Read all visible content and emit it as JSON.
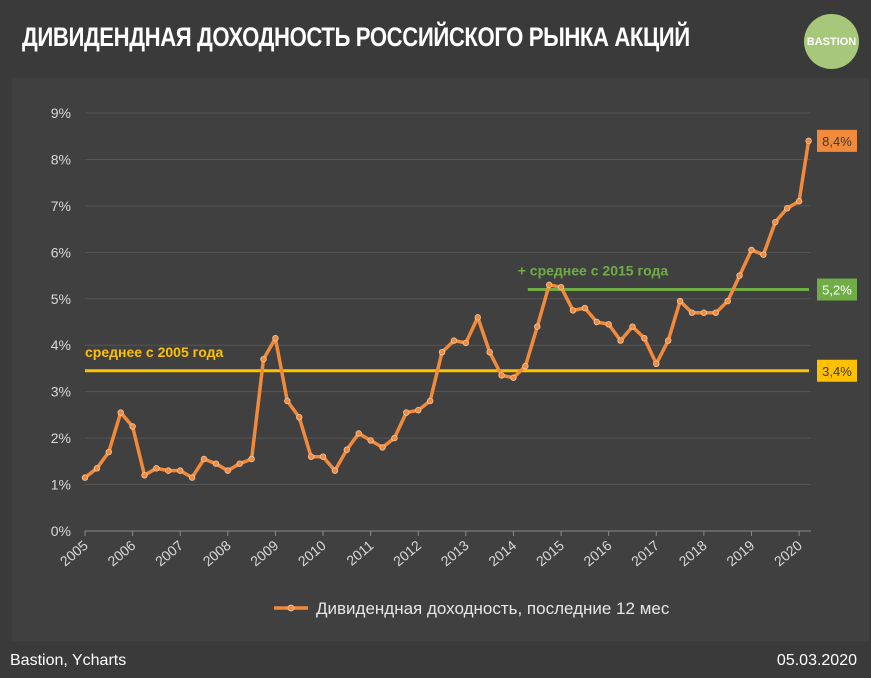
{
  "header": {
    "title": "ДИВИДЕНДНАЯ ДОХОДНОСТЬ РОССИЙСКОГО РЫНКА АКЦИЙ",
    "logo_text": "BASTION"
  },
  "footer": {
    "source": "Bastion, Ycharts",
    "date": "05.03.2020"
  },
  "colors": {
    "background": "#3a3a3a",
    "panel": "#404040",
    "series": "#f28a3c",
    "avg_2005": "#ffc000",
    "avg_2015": "#70ad47",
    "logo": "#a7c77b"
  },
  "chart_data": {
    "type": "line",
    "title": "",
    "xlabel": "",
    "ylabel": "",
    "ylim": [
      0,
      9
    ],
    "y_ticks": [
      "0%",
      "1%",
      "2%",
      "3%",
      "4%",
      "5%",
      "6%",
      "7%",
      "8%",
      "9%"
    ],
    "x_ticks": [
      "2005",
      "2006",
      "2007",
      "2008",
      "2009",
      "2010",
      "2011",
      "2012",
      "2013",
      "2014",
      "2015",
      "2016",
      "2017",
      "2018",
      "2019",
      "2020"
    ],
    "xlim": [
      2005,
      2020.25
    ],
    "grid": true,
    "legend_position": "bottom",
    "series": [
      {
        "name": "Дивидендная доходность, последние 12 мес",
        "color": "#f28a3c",
        "x": [
          2005.0,
          2005.25,
          2005.5,
          2005.75,
          2006.0,
          2006.25,
          2006.5,
          2006.75,
          2007.0,
          2007.25,
          2007.5,
          2007.75,
          2008.0,
          2008.25,
          2008.5,
          2008.75,
          2009.0,
          2009.25,
          2009.5,
          2009.75,
          2010.0,
          2010.25,
          2010.5,
          2010.75,
          2011.0,
          2011.25,
          2011.5,
          2011.75,
          2012.0,
          2012.25,
          2012.5,
          2012.75,
          2013.0,
          2013.25,
          2013.5,
          2013.75,
          2014.0,
          2014.25,
          2014.5,
          2014.75,
          2015.0,
          2015.25,
          2015.5,
          2015.75,
          2016.0,
          2016.25,
          2016.5,
          2016.75,
          2017.0,
          2017.25,
          2017.5,
          2017.75,
          2018.0,
          2018.25,
          2018.5,
          2018.75,
          2019.0,
          2019.25,
          2019.5,
          2019.75,
          2020.0,
          2020.2
        ],
        "values": [
          1.15,
          1.35,
          1.7,
          2.55,
          2.25,
          1.2,
          1.35,
          1.3,
          1.3,
          1.15,
          1.55,
          1.45,
          1.3,
          1.45,
          1.55,
          3.7,
          4.15,
          2.8,
          2.45,
          1.6,
          1.6,
          1.3,
          1.75,
          2.1,
          1.95,
          1.8,
          2.0,
          2.55,
          2.6,
          2.8,
          3.85,
          4.1,
          4.05,
          4.6,
          3.85,
          3.35,
          3.3,
          3.55,
          4.4,
          5.3,
          5.25,
          4.75,
          4.8,
          4.5,
          4.45,
          4.1,
          4.4,
          4.15,
          3.6,
          4.1,
          4.95,
          4.7,
          4.7,
          4.7,
          4.95,
          5.5,
          6.05,
          5.95,
          6.65,
          6.95,
          7.1,
          8.4
        ]
      }
    ],
    "reference_lines": [
      {
        "label": "среднее с 2005 года",
        "value": 3.45,
        "x_start": 2005.0,
        "x_end": 2020.25,
        "value_label": "3,4%",
        "color": "#ffc000"
      },
      {
        "label": "+ среднее с 2015 года",
        "value": 5.2,
        "x_start": 2014.3,
        "x_end": 2020.25,
        "value_label": "5,2%",
        "color": "#70ad47"
      }
    ],
    "end_label": {
      "text": "8,4%",
      "value": 8.4,
      "color": "#f28a3c"
    }
  }
}
